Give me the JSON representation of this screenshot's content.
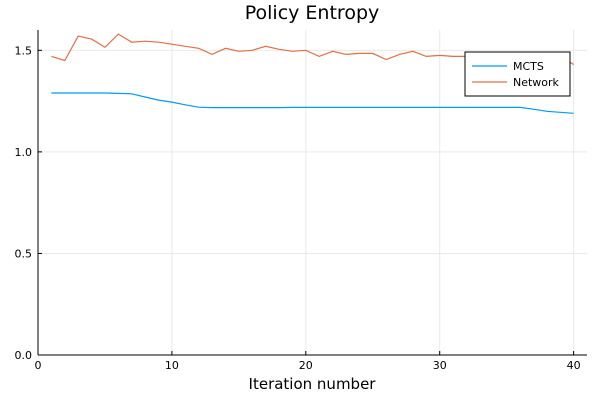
{
  "chart_data": {
    "type": "line",
    "title": "Policy Entropy",
    "xlabel": "Iteration number",
    "ylabel": "",
    "xlim": [
      0,
      41
    ],
    "ylim": [
      0,
      1.6
    ],
    "xticks": [
      0,
      10,
      20,
      30,
      40
    ],
    "yticks": [
      0.0,
      0.5,
      1.0,
      1.5
    ],
    "xtick_labels": [
      "0",
      "10",
      "20",
      "30",
      "40"
    ],
    "ytick_labels": [
      "0.0",
      "0.5",
      "1.0",
      "1.5"
    ],
    "grid": true,
    "legend_position": "top-right",
    "x": [
      1,
      2,
      3,
      4,
      5,
      6,
      7,
      8,
      9,
      10,
      11,
      12,
      13,
      14,
      15,
      16,
      17,
      18,
      19,
      20,
      21,
      22,
      23,
      24,
      25,
      26,
      27,
      28,
      29,
      30,
      31,
      32,
      33,
      34,
      35,
      36,
      37,
      38,
      39,
      40
    ],
    "series": [
      {
        "name": "MCTS",
        "color": "#009af9",
        "values": [
          1.29,
          1.29,
          1.29,
          1.29,
          1.29,
          1.288,
          1.286,
          1.27,
          1.255,
          1.245,
          1.232,
          1.22,
          1.218,
          1.218,
          1.218,
          1.218,
          1.218,
          1.218,
          1.219,
          1.219,
          1.219,
          1.219,
          1.219,
          1.219,
          1.219,
          1.219,
          1.219,
          1.219,
          1.219,
          1.219,
          1.219,
          1.219,
          1.219,
          1.219,
          1.219,
          1.219,
          1.21,
          1.2,
          1.195,
          1.19
        ]
      },
      {
        "name": "Network",
        "color": "#e26f46",
        "values": [
          1.47,
          1.45,
          1.57,
          1.555,
          1.515,
          1.58,
          1.54,
          1.545,
          1.54,
          1.53,
          1.52,
          1.51,
          1.48,
          1.51,
          1.495,
          1.5,
          1.52,
          1.505,
          1.495,
          1.5,
          1.47,
          1.495,
          1.48,
          1.485,
          1.485,
          1.455,
          1.48,
          1.495,
          1.47,
          1.475,
          1.47,
          1.47,
          1.475,
          1.47,
          1.47,
          1.465,
          1.47,
          1.48,
          1.47,
          1.43
        ]
      }
    ]
  }
}
